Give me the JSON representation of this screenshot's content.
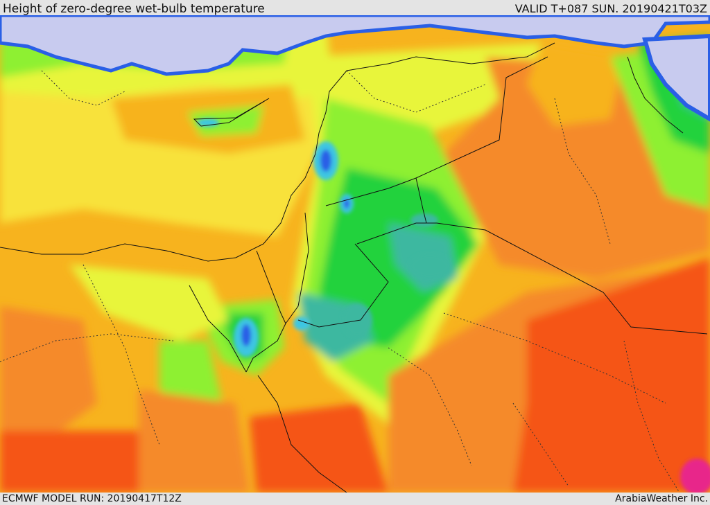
{
  "header": {
    "title": "Height of zero-degree wet-bulb temperature",
    "valid": "VALID T+087 SUN. 20190421T03Z"
  },
  "footer": {
    "model_run": "ECMWF MODEL RUN: 20190417T12Z",
    "credit": "ArabiaWeather Inc."
  },
  "palette": {
    "sea_lavender": "#c8cbef",
    "blue": "#2a5fe6",
    "cyan": "#3ec6e2",
    "teal": "#3db8a0",
    "green": "#22d23c",
    "light_green": "#8ef032",
    "yellow_green": "#e8f53a",
    "yellow": "#f8e23a",
    "orange_yellow": "#f7b31e",
    "orange": "#f58a2a",
    "red_orange": "#f55418",
    "magenta": "#e8288a"
  }
}
